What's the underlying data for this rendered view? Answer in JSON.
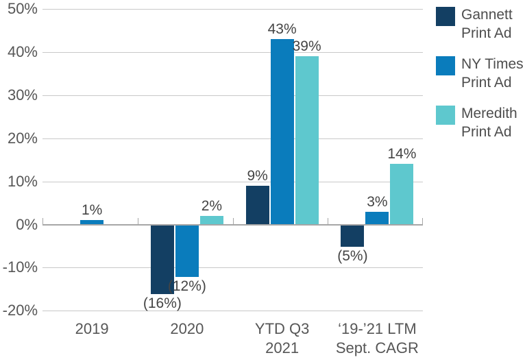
{
  "chart_data": {
    "type": "bar",
    "title": "",
    "xlabel": "",
    "ylabel": "",
    "categories": [
      [
        "2019"
      ],
      [
        "2020"
      ],
      [
        "YTD Q3",
        "2021"
      ],
      [
        "‘19-’21 LTM",
        "Sept. CAGR"
      ]
    ],
    "series": [
      {
        "name": "Gannett Print Ad",
        "color": "#133F63",
        "values": [
          0,
          -16,
          9,
          -5
        ],
        "data_labels": [
          "",
          "(16%)",
          "9%",
          "(5%)"
        ]
      },
      {
        "name": "NY Times Print Ad",
        "color": "#0A7CBC",
        "values": [
          1,
          -12,
          43,
          3
        ],
        "data_labels": [
          "1%",
          "(12%)",
          "43%",
          "3%"
        ]
      },
      {
        "name": "Meredith Print Ad",
        "color": "#5EC8CE",
        "values": [
          0,
          2,
          39,
          14
        ],
        "data_labels": [
          "",
          "2%",
          "39%",
          "14%"
        ]
      }
    ],
    "ylim": [
      -20,
      50
    ],
    "y_ticks": [
      {
        "value": 50,
        "label": "50%"
      },
      {
        "value": 40,
        "label": "40%"
      },
      {
        "value": 30,
        "label": "30%"
      },
      {
        "value": 20,
        "label": "20%"
      },
      {
        "value": 10,
        "label": "10%"
      },
      {
        "value": 0,
        "label": "0%"
      },
      {
        "value": -10,
        "label": "-10%"
      },
      {
        "value": -20,
        "label": "-20%"
      }
    ],
    "grid": "horizontal",
    "legend_position": "right",
    "legend": [
      {
        "lines": [
          "Gannett",
          "Print Ad"
        ],
        "color": "#133F63"
      },
      {
        "lines": [
          "NY Times",
          "Print Ad"
        ],
        "color": "#0A7CBC"
      },
      {
        "lines": [
          "Meredith",
          "Print Ad"
        ],
        "color": "#5EC8CE"
      }
    ]
  },
  "colors": {
    "gridline": "#C8C8C8",
    "zero_line": "#A6A6A6",
    "axis_text": "#565656",
    "value_text": "#444444",
    "background": "#FFFFFF"
  }
}
